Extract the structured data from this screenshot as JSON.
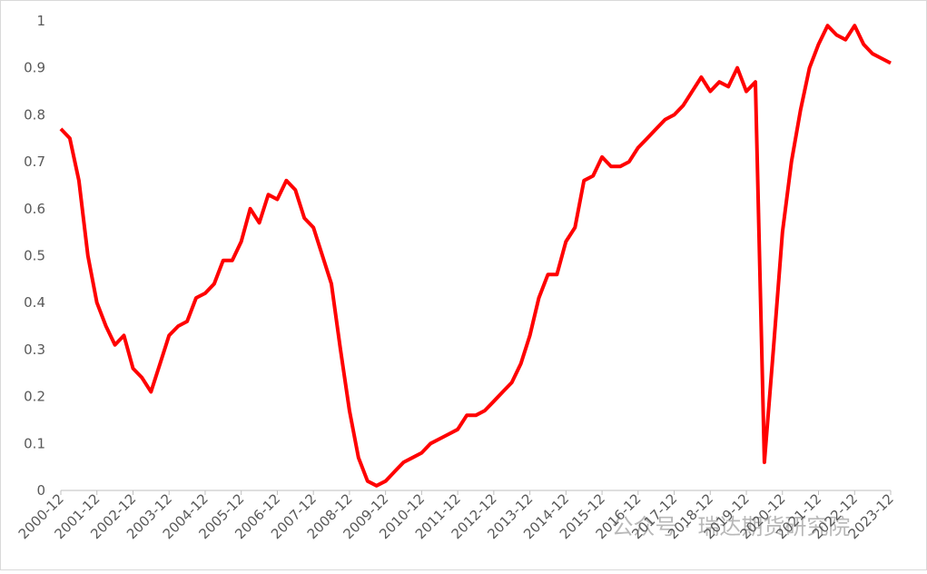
{
  "chart_data": {
    "type": "line",
    "categories": [
      "2000-12",
      null,
      null,
      null,
      "2001-12",
      null,
      null,
      null,
      "2002-12",
      null,
      null,
      null,
      "2003-12",
      null,
      null,
      null,
      "2004-12",
      null,
      null,
      null,
      "2005-12",
      null,
      null,
      null,
      "2006-12",
      null,
      null,
      null,
      "2007-12",
      null,
      null,
      null,
      "2008-12",
      null,
      null,
      null,
      "2009-12",
      null,
      null,
      null,
      "2010-12",
      null,
      null,
      null,
      "2011-12",
      null,
      null,
      null,
      "2012-12",
      null,
      null,
      null,
      "2013-12",
      null,
      null,
      null,
      "2014-12",
      null,
      null,
      null,
      "2015-12",
      null,
      null,
      null,
      "2016-12",
      null,
      null,
      null,
      "2017-12",
      null,
      null,
      null,
      "2018-12",
      null,
      null,
      null,
      "2019-12",
      null,
      null,
      null,
      "2020-12",
      null,
      null,
      null,
      "2021-12",
      null,
      null,
      null,
      "2022-12",
      null,
      null,
      null,
      "2023-12"
    ],
    "series": [
      {
        "color": "#ff0000",
        "values": [
          0.77,
          0.75,
          0.66,
          0.5,
          0.4,
          0.35,
          0.31,
          0.33,
          0.26,
          0.24,
          0.21,
          0.27,
          0.33,
          0.35,
          0.36,
          0.41,
          0.42,
          0.44,
          0.49,
          0.49,
          0.53,
          0.6,
          0.57,
          0.63,
          0.62,
          0.66,
          0.64,
          0.58,
          0.56,
          0.5,
          0.44,
          0.3,
          0.17,
          0.07,
          0.02,
          0.01,
          0.02,
          0.04,
          0.06,
          0.07,
          0.08,
          0.1,
          0.11,
          0.12,
          0.13,
          0.16,
          0.16,
          0.17,
          0.19,
          0.21,
          0.23,
          0.27,
          0.33,
          0.41,
          0.46,
          0.46,
          0.53,
          0.56,
          0.66,
          0.67,
          0.71,
          0.69,
          0.69,
          0.7,
          0.73,
          0.75,
          0.77,
          0.79,
          0.8,
          0.82,
          0.85,
          0.88,
          0.85,
          0.87,
          0.86,
          0.9,
          0.85,
          0.87,
          0.06,
          0.3,
          0.55,
          0.7,
          0.81,
          0.9,
          0.95,
          0.99,
          0.97,
          0.96,
          0.99,
          0.95,
          0.93,
          0.92,
          0.91
        ]
      }
    ],
    "ylim": [
      0,
      1
    ],
    "yticks": [
      0,
      0.1,
      0.2,
      0.3,
      0.4,
      0.5,
      0.6,
      0.7,
      0.8,
      0.9,
      1
    ],
    "grid": false,
    "watermark": "公众号 · 瑞达期货研究院"
  }
}
